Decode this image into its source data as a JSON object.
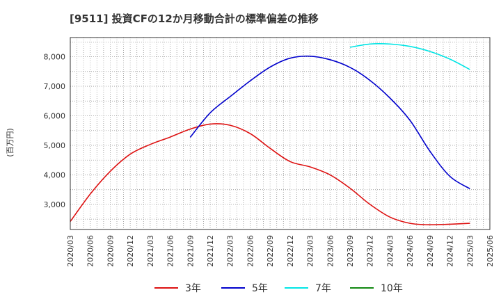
{
  "chart_data": {
    "type": "line",
    "title": "[9511]  投資CFの12か月移動合計の標準偏差の推移",
    "ylabel": "(百万円)",
    "xlabel": "",
    "x_ticks": [
      "2020/03",
      "2020/06",
      "2020/09",
      "2020/12",
      "2021/03",
      "2021/06",
      "2021/09",
      "2021/12",
      "2022/03",
      "2022/06",
      "2022/09",
      "2022/12",
      "2023/03",
      "2023/06",
      "2023/09",
      "2023/12",
      "2024/03",
      "2024/06",
      "2024/09",
      "2024/12",
      "2025/03",
      "2025/06"
    ],
    "xlim": [
      "2020/03",
      "2025/06"
    ],
    "y_ticks": [
      "3,000",
      "4,000",
      "5,000",
      "6,000",
      "7,000",
      "8,000"
    ],
    "y_tick_values": [
      3000,
      4000,
      5000,
      6000,
      7000,
      8000
    ],
    "ylim": [
      2150,
      8650
    ],
    "grid": true,
    "legend_position": "bottom",
    "series": [
      {
        "name": "3年",
        "color": "#dd1111",
        "x": [
          "2020/03",
          "2020/06",
          "2020/09",
          "2020/12",
          "2021/03",
          "2021/06",
          "2021/09",
          "2021/12",
          "2022/03",
          "2022/06",
          "2022/09",
          "2022/12",
          "2023/03",
          "2023/06",
          "2023/09",
          "2023/12",
          "2024/03",
          "2024/06",
          "2024/09",
          "2024/12",
          "2025/03"
        ],
        "values": [
          2420,
          3350,
          4120,
          4700,
          5030,
          5280,
          5550,
          5720,
          5680,
          5400,
          4900,
          4450,
          4270,
          4000,
          3550,
          3000,
          2570,
          2360,
          2310,
          2330,
          2360
        ]
      },
      {
        "name": "5年",
        "color": "#0000cc",
        "x": [
          "2021/09",
          "2021/12",
          "2022/03",
          "2022/06",
          "2022/09",
          "2022/12",
          "2023/03",
          "2023/06",
          "2023/09",
          "2023/12",
          "2024/03",
          "2024/06",
          "2024/09",
          "2024/12",
          "2025/03"
        ],
        "values": [
          5270,
          6100,
          6650,
          7180,
          7650,
          7950,
          8020,
          7900,
          7640,
          7200,
          6600,
          5850,
          4800,
          3950,
          3530
        ]
      },
      {
        "name": "7年",
        "color": "#00e5e5",
        "x": [
          "2023/09",
          "2023/12",
          "2024/03",
          "2024/06",
          "2024/09",
          "2024/12",
          "2025/03"
        ],
        "values": [
          8320,
          8430,
          8430,
          8350,
          8180,
          7920,
          7570
        ]
      },
      {
        "name": "10年",
        "color": "#118811",
        "x": [],
        "values": []
      }
    ]
  }
}
